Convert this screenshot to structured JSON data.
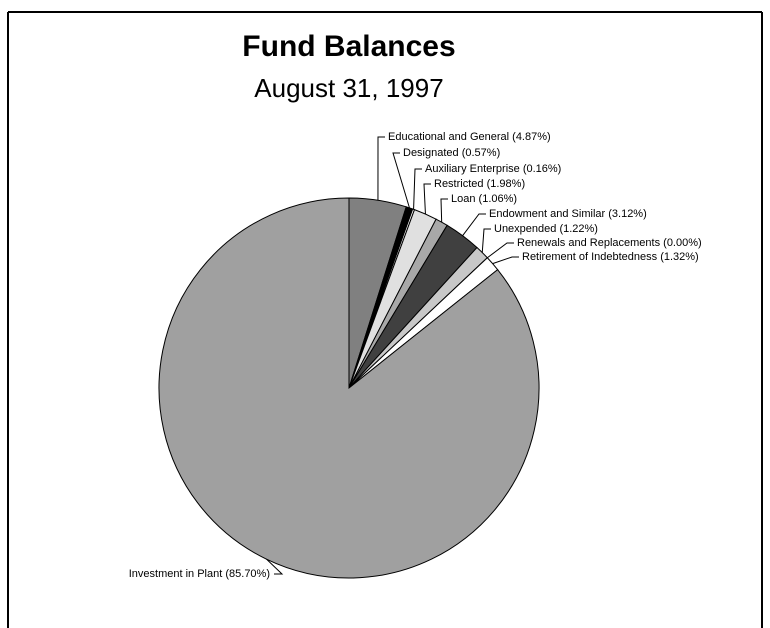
{
  "chart_data": {
    "type": "pie",
    "title": "Fund Balances",
    "subtitle": "August 31, 1997",
    "categories": [
      "Educational and General",
      "Designated",
      "Auxiliary Enterprise",
      "Restricted",
      "Loan",
      "Endowment and Similar",
      "Unexpended",
      "Renewals and Replacements",
      "Retirement of Indebtedness",
      "Investment in Plant"
    ],
    "values": [
      4.87,
      0.57,
      0.16,
      1.98,
      1.06,
      3.12,
      1.22,
      0.0,
      1.32,
      85.7
    ],
    "value_labels": [
      "(4.87%)",
      "(0.57%)",
      "(0.16%)",
      "(1.98%)",
      "(1.06%)",
      "(3.12%)",
      "(1.22%)",
      "(0.00%)",
      "(1.32%)",
      "(85.70%)"
    ],
    "colors": [
      "#808080",
      "#000000",
      "#ffffff",
      "#e0e0e0",
      "#a8a8a8",
      "#404040",
      "#c8c8c8",
      "#ffffff",
      "#ffffff",
      "#a0a0a0"
    ]
  }
}
